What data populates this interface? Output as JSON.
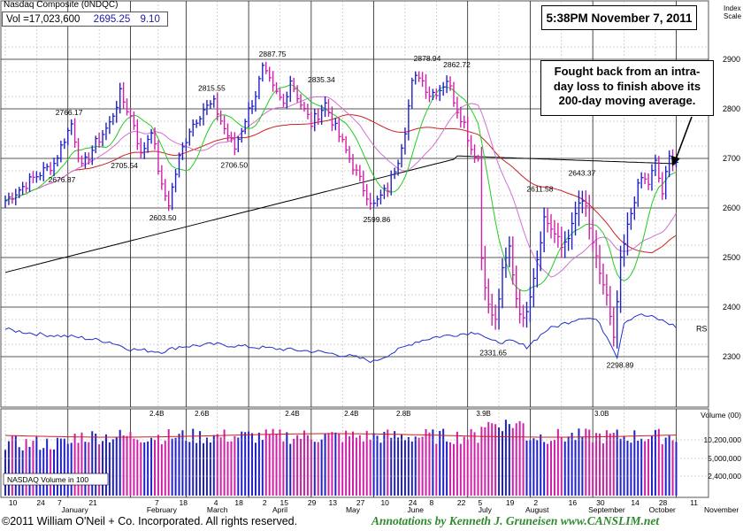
{
  "header": {
    "ticker": "Nasdaq Composite  (0NDQC)",
    "vol_label": "Vol =17,023,600",
    "price": "2695.25",
    "change": "9.10"
  },
  "stamp": "5:38PM November 7, 2011",
  "annotation": {
    "lines": [
      "Fought back from an intra-",
      "day loss to finish above its",
      "200-day moving average."
    ]
  },
  "footer": {
    "copyright": "©2011 William O'Neil + Co. Incorporated. All rights reserved.",
    "credit": "Annotations by Kenneth J. Gruneisen  www.CANSLIM.net"
  },
  "colors": {
    "up_bar": "#2020c8",
    "down_bar": "#d020a8",
    "ma10": "#22cc22",
    "ma21": "#d070d0",
    "ma50": "#cc2020",
    "ma200": "#000000",
    "rs": "#2030c8",
    "grid": "#888888"
  },
  "chart_data": {
    "type": "candlestick",
    "price_axis": {
      "title": "Index Scale",
      "ticks": [
        "2900",
        "2800",
        "2700",
        "2600",
        "2500",
        "2400",
        "2300"
      ],
      "range": [
        2270,
        2960
      ]
    },
    "volume_axis": {
      "title": "Volume (00)",
      "ticks": [
        "10,200,000",
        "5,000,000",
        "2,400,000"
      ]
    },
    "dates": {
      "day_ticks": [
        "10",
        "24",
        "7",
        "21",
        "7",
        "18",
        "4",
        "18",
        "2",
        "15",
        "29",
        "13",
        "27",
        "10",
        "24",
        "8",
        "22",
        "5",
        "19",
        "2",
        "16",
        "30",
        "14",
        "28",
        "11"
      ],
      "months": [
        "January",
        "February",
        "March",
        "April",
        "May",
        "June",
        "July",
        "August",
        "September",
        "October",
        "November"
      ]
    },
    "price_labels": [
      "2766.17",
      "2676.87",
      "2705.54",
      "2603.50",
      "2815.55",
      "2706.50",
      "2887.75",
      "2835.34",
      "2599.86",
      "2878.94",
      "2862.72",
      "2331.65",
      "2611.58",
      "2643.37",
      "2298.89"
    ],
    "volume_labels": [
      "2.4B",
      "2.6B",
      "2.4B",
      "2.4B",
      "2.8B",
      "3.9B",
      "3.0B"
    ],
    "series_labels": {
      "rs": "RS",
      "volume_legend": "NASDAQ Volume in 100"
    },
    "price_keypoints": [
      [
        0,
        2615
      ],
      [
        8,
        2660
      ],
      [
        14,
        2690
      ],
      [
        17,
        2740
      ],
      [
        19,
        2770
      ],
      [
        22,
        2680
      ],
      [
        26,
        2730
      ],
      [
        30,
        2770
      ],
      [
        33,
        2830
      ],
      [
        37,
        2770
      ],
      [
        39,
        2705
      ],
      [
        42,
        2760
      ],
      [
        45,
        2640
      ],
      [
        47,
        2610
      ],
      [
        50,
        2700
      ],
      [
        53,
        2760
      ],
      [
        57,
        2800
      ],
      [
        60,
        2810
      ],
      [
        63,
        2760
      ],
      [
        66,
        2720
      ],
      [
        69,
        2780
      ],
      [
        72,
        2830
      ],
      [
        74,
        2880
      ],
      [
        77,
        2840
      ],
      [
        80,
        2810
      ],
      [
        82,
        2860
      ],
      [
        85,
        2810
      ],
      [
        88,
        2770
      ],
      [
        92,
        2810
      ],
      [
        95,
        2760
      ],
      [
        99,
        2700
      ],
      [
        103,
        2640
      ],
      [
        106,
        2605
      ],
      [
        110,
        2640
      ],
      [
        113,
        2700
      ],
      [
        115,
        2760
      ],
      [
        117,
        2850
      ],
      [
        119,
        2870
      ],
      [
        122,
        2830
      ],
      [
        125,
        2840
      ],
      [
        127,
        2860
      ],
      [
        130,
        2800
      ],
      [
        132,
        2770
      ],
      [
        134,
        2720
      ],
      [
        136,
        2700
      ],
      [
        137,
        2500
      ],
      [
        139,
        2400
      ],
      [
        141,
        2370
      ],
      [
        143,
        2470
      ],
      [
        145,
        2520
      ],
      [
        147,
        2420
      ],
      [
        149,
        2370
      ],
      [
        151,
        2430
      ],
      [
        153,
        2500
      ],
      [
        155,
        2580
      ],
      [
        157,
        2560
      ],
      [
        160,
        2520
      ],
      [
        163,
        2560
      ],
      [
        165,
        2610
      ],
      [
        167,
        2600
      ],
      [
        169,
        2520
      ],
      [
        171,
        2470
      ],
      [
        173,
        2420
      ],
      [
        175,
        2330
      ],
      [
        177,
        2490
      ],
      [
        179,
        2560
      ],
      [
        181,
        2620
      ],
      [
        183,
        2660
      ],
      [
        185,
        2650
      ],
      [
        187,
        2690
      ],
      [
        189,
        2630
      ],
      [
        191,
        2700
      ],
      [
        193,
        2695
      ]
    ],
    "rs_keypoints": [
      [
        0,
        2355
      ],
      [
        10,
        2345
      ],
      [
        20,
        2340
      ],
      [
        30,
        2330
      ],
      [
        36,
        2315
      ],
      [
        45,
        2310
      ],
      [
        50,
        2320
      ],
      [
        60,
        2325
      ],
      [
        70,
        2320
      ],
      [
        80,
        2315
      ],
      [
        90,
        2310
      ],
      [
        100,
        2300
      ],
      [
        106,
        2290
      ],
      [
        112,
        2310
      ],
      [
        118,
        2330
      ],
      [
        124,
        2340
      ],
      [
        130,
        2345
      ],
      [
        136,
        2350
      ],
      [
        140,
        2330
      ],
      [
        146,
        2330
      ],
      [
        150,
        2320
      ],
      [
        156,
        2355
      ],
      [
        160,
        2365
      ],
      [
        166,
        2380
      ],
      [
        170,
        2375
      ],
      [
        174,
        2330
      ],
      [
        176,
        2300
      ],
      [
        178,
        2370
      ],
      [
        182,
        2385
      ],
      [
        186,
        2380
      ],
      [
        190,
        2370
      ],
      [
        193,
        2360
      ]
    ]
  }
}
